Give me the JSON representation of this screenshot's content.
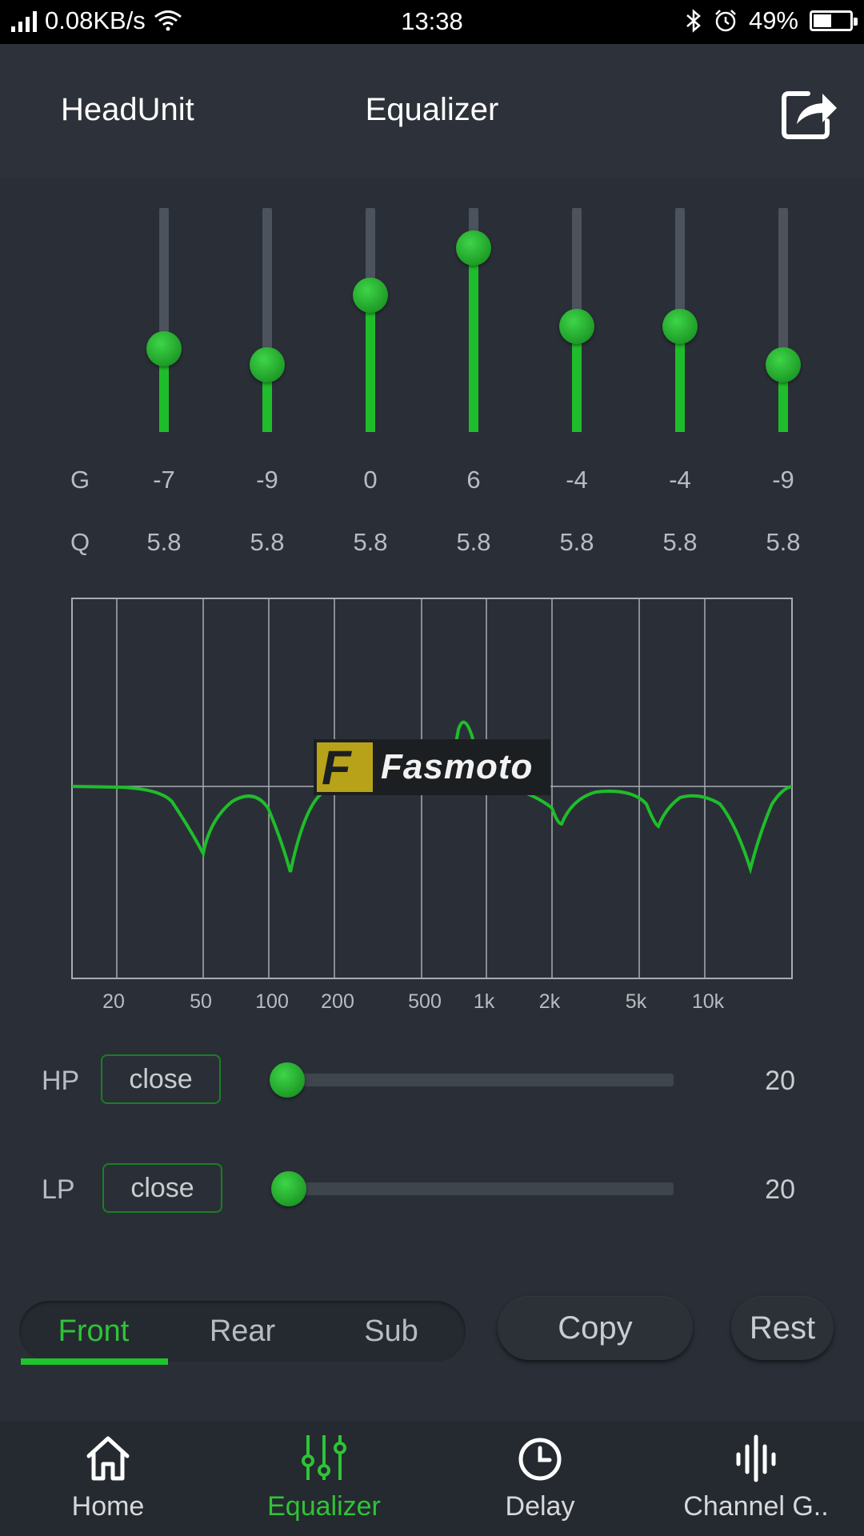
{
  "status_bar": {
    "net_speed": "0.08KB/s",
    "time": "13:38",
    "battery": "49%",
    "battery_level": 0.49
  },
  "header": {
    "left_title": "HeadUnit",
    "center_title": "Equalizer",
    "share_icon": "share-icon"
  },
  "bands": {
    "g_label": "G",
    "q_label": "Q",
    "items": [
      {
        "g": "-7",
        "q": "5.8",
        "level": 0.37
      },
      {
        "g": "-9",
        "q": "5.8",
        "level": 0.3
      },
      {
        "g": "0",
        "q": "5.8",
        "level": 0.61
      },
      {
        "g": "6",
        "q": "5.8",
        "level": 0.82
      },
      {
        "g": "-4",
        "q": "5.8",
        "level": 0.47
      },
      {
        "g": "-4",
        "q": "5.8",
        "level": 0.47
      },
      {
        "g": "-9",
        "q": "5.8",
        "level": 0.3
      }
    ]
  },
  "graph": {
    "x_ticks": [
      "20",
      "50",
      "100",
      "200",
      "500",
      "1k",
      "2k",
      "5k",
      "10k"
    ],
    "logo_text": "Fasmoto"
  },
  "filters": {
    "hp": {
      "label": "HP",
      "button": "close",
      "value": "20"
    },
    "lp": {
      "label": "LP",
      "button": "close",
      "value": "20"
    }
  },
  "channels": {
    "tabs": [
      "Front",
      "Rear",
      "Sub"
    ],
    "active": "Front",
    "copy_label": "Copy",
    "reset_label": "Rest"
  },
  "nav": {
    "items": [
      {
        "label": "Home",
        "icon": "home-icon"
      },
      {
        "label": "Equalizer",
        "icon": "equalizer-icon"
      },
      {
        "label": "Delay",
        "icon": "clock-icon"
      },
      {
        "label": "Channel G..",
        "icon": "waveform-icon"
      }
    ],
    "active": "Equalizer"
  },
  "colors": {
    "accent": "#1fbd2b",
    "background": "#2a2f37",
    "statusbar": "#000000"
  }
}
